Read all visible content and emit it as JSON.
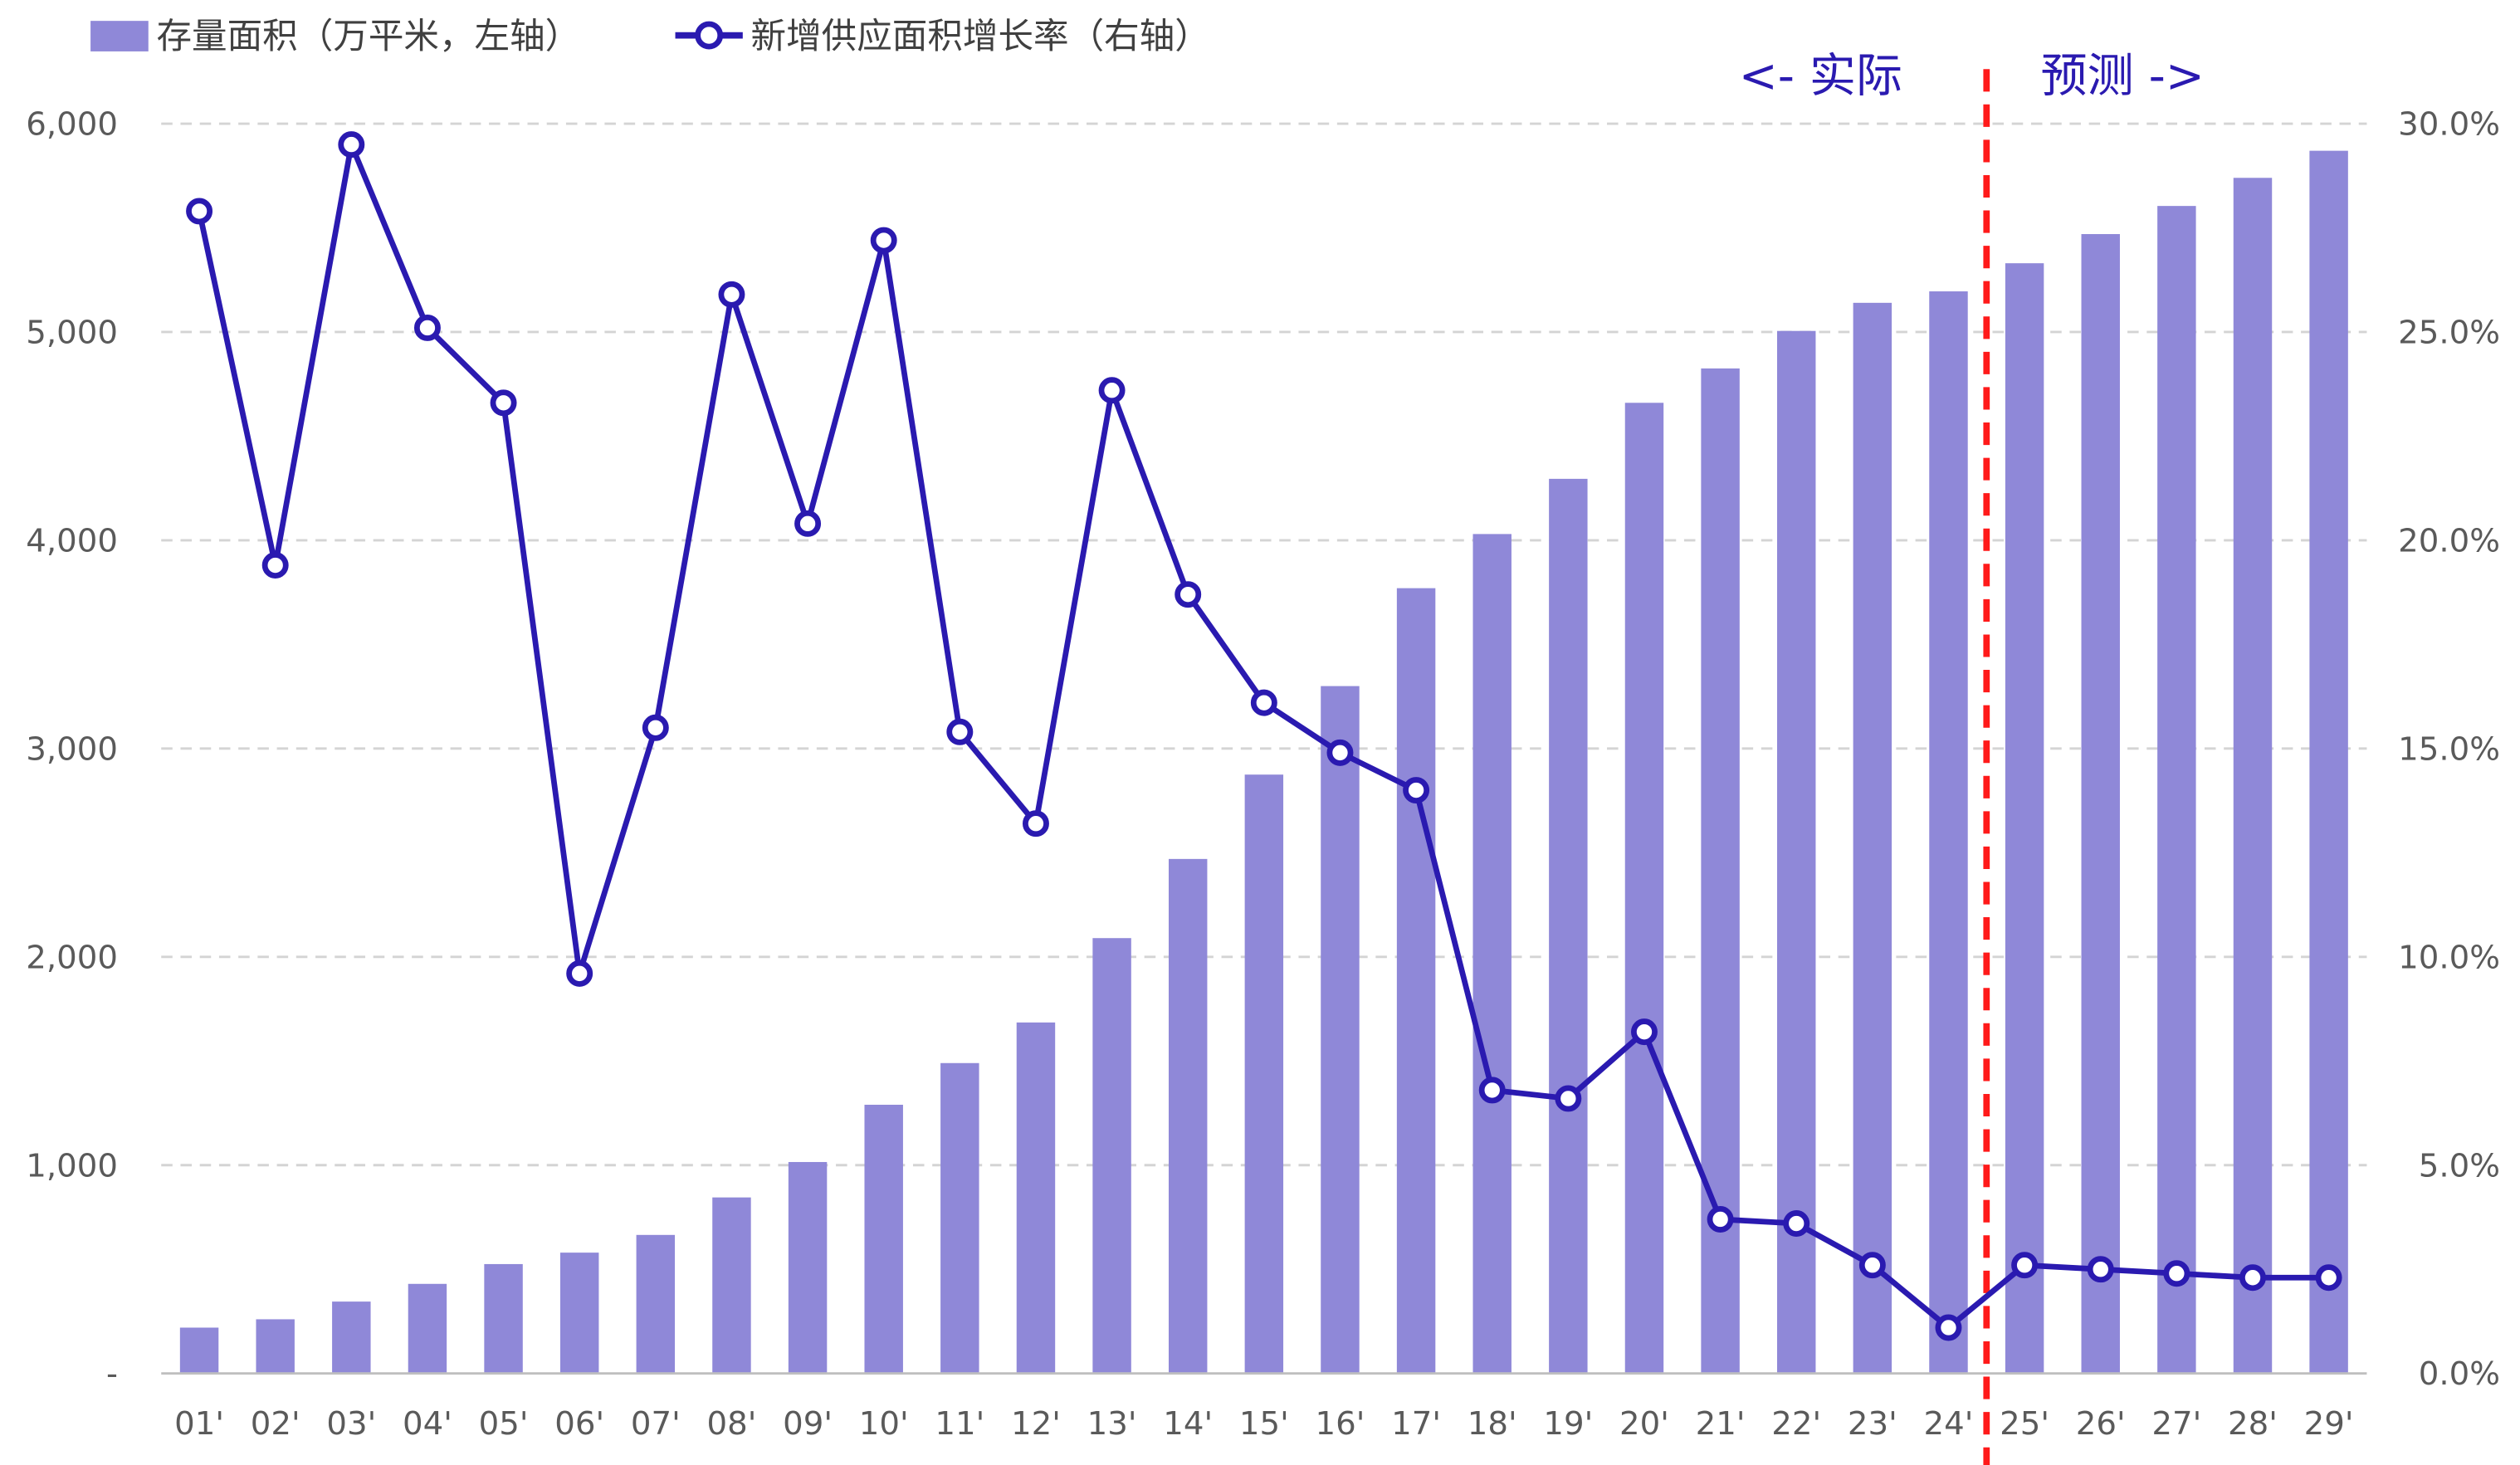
{
  "chart_data": {
    "type": "bar+line",
    "categories": [
      "01'",
      "02'",
      "03'",
      "04'",
      "05'",
      "06'",
      "07'",
      "08'",
      "09'",
      "10'",
      "11'",
      "12'",
      "13'",
      "14'",
      "15'",
      "16'",
      "17'",
      "18'",
      "19'",
      "20'",
      "21'",
      "22'",
      "23'",
      "24'",
      "25'",
      "26'",
      "27'",
      "28'",
      "29'"
    ],
    "series": [
      {
        "name": "存量面积（万平米，左轴）",
        "type": "bar",
        "axis": "left",
        "color": "#8f88d8",
        "values": [
          220,
          260,
          345,
          430,
          525,
          580,
          665,
          845,
          1015,
          1290,
          1490,
          1685,
          2090,
          2470,
          2875,
          3300,
          3770,
          4030,
          4295,
          4660,
          4825,
          5005,
          5140,
          5195,
          5330,
          5470,
          5605,
          5740,
          5870
        ]
      },
      {
        "name": "新增供应面积增长率（右轴）",
        "type": "line",
        "axis": "right",
        "color": "#2a1ab0",
        "values": [
          27.9,
          19.4,
          29.5,
          25.1,
          23.3,
          9.6,
          15.5,
          25.9,
          20.4,
          27.2,
          15.4,
          13.2,
          23.6,
          18.7,
          16.1,
          14.9,
          14.0,
          6.8,
          6.6,
          8.2,
          3.7,
          3.6,
          2.6,
          1.1,
          2.6,
          2.5,
          2.4,
          2.3,
          2.3
        ]
      }
    ],
    "y_left": {
      "min": 0,
      "max": 6000,
      "ticks": [
        0,
        1000,
        2000,
        3000,
        4000,
        5000,
        6000
      ],
      "tick_labels": [
        "-",
        "1,000",
        "2,000",
        "3,000",
        "4,000",
        "5,000",
        "6,000"
      ]
    },
    "y_right": {
      "min": 0,
      "max": 30,
      "ticks": [
        0,
        5,
        10,
        15,
        20,
        25,
        30
      ],
      "tick_labels": [
        "0.0%",
        "5.0%",
        "10.0%",
        "15.0%",
        "20.0%",
        "25.0%",
        "30.0%"
      ]
    },
    "grid": true,
    "grid_style": "dashed",
    "legend_position": "top-left",
    "divider_after_category": "24'",
    "divider_color": "#ff1a1a",
    "annotations": {
      "actual": "<- 实际",
      "forecast": "预测 ->"
    }
  }
}
